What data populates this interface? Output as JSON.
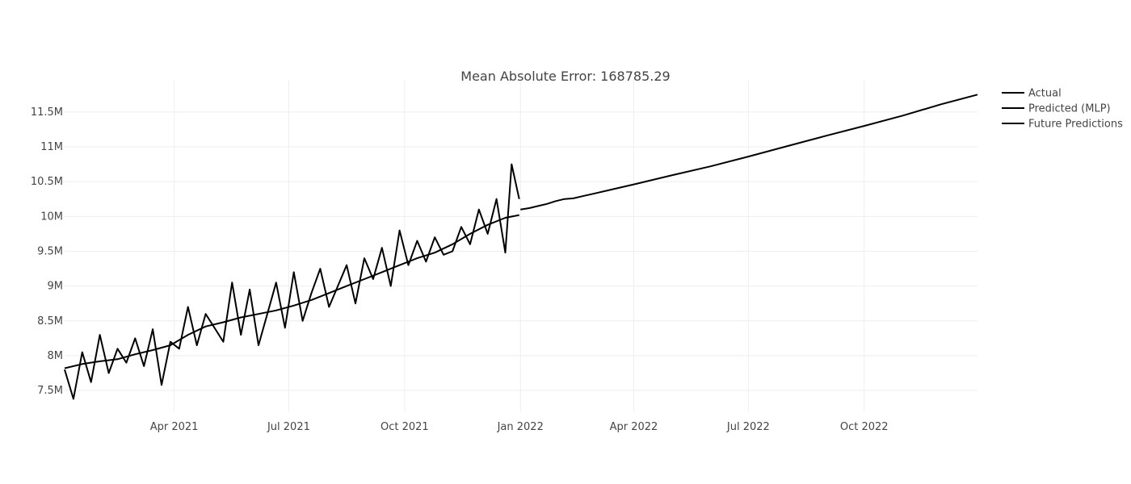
{
  "chart_data": {
    "type": "line",
    "title": "Mean Absolute Error: 168785.29",
    "xlabel": "",
    "ylabel": "",
    "x_axis_type": "date",
    "xlim": [
      "2021-01-04",
      "2022-12-30"
    ],
    "ylim": [
      7200000,
      11950000
    ],
    "x_ticks": [
      {
        "date": "2021-04-01",
        "label": "Apr 2021"
      },
      {
        "date": "2021-07-01",
        "label": "Jul 2021"
      },
      {
        "date": "2021-10-01",
        "label": "Oct 2021"
      },
      {
        "date": "2022-01-01",
        "label": "Jan 2022"
      },
      {
        "date": "2022-04-01",
        "label": "Apr 2022"
      },
      {
        "date": "2022-07-01",
        "label": "Jul 2022"
      },
      {
        "date": "2022-10-01",
        "label": "Oct 2022"
      }
    ],
    "y_ticks": [
      {
        "value": 7500000,
        "label": "7.5M"
      },
      {
        "value": 8000000,
        "label": "8M"
      },
      {
        "value": 8500000,
        "label": "8.5M"
      },
      {
        "value": 9000000,
        "label": "9M"
      },
      {
        "value": 9500000,
        "label": "9.5M"
      },
      {
        "value": 10000000,
        "label": "10M"
      },
      {
        "value": 10500000,
        "label": "10.5M"
      },
      {
        "value": 11000000,
        "label": "11M"
      },
      {
        "value": 11500000,
        "label": "11.5M"
      }
    ],
    "grid": true,
    "legend_position": "top-right",
    "colors": {
      "line": "#000000",
      "grid": "#eeeeee",
      "text": "#444444"
    },
    "series": [
      {
        "name": "Actual",
        "x": [
          "2021-01-04",
          "2021-01-11",
          "2021-01-18",
          "2021-01-25",
          "2021-02-01",
          "2021-02-08",
          "2021-02-15",
          "2021-02-22",
          "2021-03-01",
          "2021-03-08",
          "2021-03-15",
          "2021-03-22",
          "2021-03-29",
          "2021-04-05",
          "2021-04-12",
          "2021-04-19",
          "2021-04-26",
          "2021-05-03",
          "2021-05-10",
          "2021-05-17",
          "2021-05-24",
          "2021-05-31",
          "2021-06-07",
          "2021-06-14",
          "2021-06-21",
          "2021-06-28",
          "2021-07-05",
          "2021-07-12",
          "2021-07-19",
          "2021-07-26",
          "2021-08-02",
          "2021-08-09",
          "2021-08-16",
          "2021-08-23",
          "2021-08-30",
          "2021-09-06",
          "2021-09-13",
          "2021-09-20",
          "2021-09-27",
          "2021-10-04",
          "2021-10-11",
          "2021-10-18",
          "2021-10-25",
          "2021-11-01",
          "2021-11-08",
          "2021-11-15",
          "2021-11-22",
          "2021-11-29",
          "2021-12-06",
          "2021-12-13",
          "2021-12-20",
          "2021-12-25",
          "2021-12-31"
        ],
        "values": [
          7800000,
          7380000,
          8050000,
          7620000,
          8300000,
          7750000,
          8100000,
          7900000,
          8250000,
          7850000,
          8380000,
          7580000,
          8200000,
          8100000,
          8700000,
          8150000,
          8600000,
          8400000,
          8200000,
          9050000,
          8300000,
          8950000,
          8150000,
          8600000,
          9050000,
          8400000,
          9200000,
          8500000,
          8900000,
          9250000,
          8700000,
          9000000,
          9300000,
          8750000,
          9400000,
          9100000,
          9550000,
          9000000,
          9800000,
          9300000,
          9650000,
          9350000,
          9700000,
          9450000,
          9500000,
          9850000,
          9600000,
          10100000,
          9750000,
          10250000,
          9480000,
          10750000,
          10250000
        ]
      },
      {
        "name": "Predicted (MLP)",
        "x": [
          "2021-01-04",
          "2021-01-18",
          "2021-02-01",
          "2021-02-15",
          "2021-03-01",
          "2021-03-15",
          "2021-03-29",
          "2021-04-12",
          "2021-04-26",
          "2021-05-10",
          "2021-05-24",
          "2021-06-07",
          "2021-06-21",
          "2021-07-05",
          "2021-07-19",
          "2021-08-02",
          "2021-08-16",
          "2021-08-30",
          "2021-09-13",
          "2021-09-27",
          "2021-10-11",
          "2021-10-25",
          "2021-11-08",
          "2021-11-22",
          "2021-12-06",
          "2021-12-20",
          "2021-12-31"
        ],
        "values": [
          7820000,
          7880000,
          7920000,
          7950000,
          8020000,
          8080000,
          8150000,
          8300000,
          8420000,
          8480000,
          8550000,
          8600000,
          8650000,
          8720000,
          8800000,
          8900000,
          9000000,
          9100000,
          9200000,
          9300000,
          9400000,
          9480000,
          9600000,
          9750000,
          9880000,
          9980000,
          10020000
        ]
      },
      {
        "name": "Future Predictions",
        "x": [
          "2022-01-01",
          "2022-01-08",
          "2022-01-15",
          "2022-01-22",
          "2022-01-29",
          "2022-02-05",
          "2022-02-12",
          "2022-02-19",
          "2022-03-01",
          "2022-04-01",
          "2022-05-01",
          "2022-06-01",
          "2022-07-01",
          "2022-08-01",
          "2022-09-01",
          "2022-10-01",
          "2022-11-01",
          "2022-12-01",
          "2022-12-30"
        ],
        "values": [
          10100000,
          10120000,
          10150000,
          10180000,
          10220000,
          10250000,
          10260000,
          10290000,
          10330000,
          10460000,
          10590000,
          10720000,
          10860000,
          11010000,
          11160000,
          11300000,
          11450000,
          11610000,
          11750000
        ]
      }
    ]
  }
}
